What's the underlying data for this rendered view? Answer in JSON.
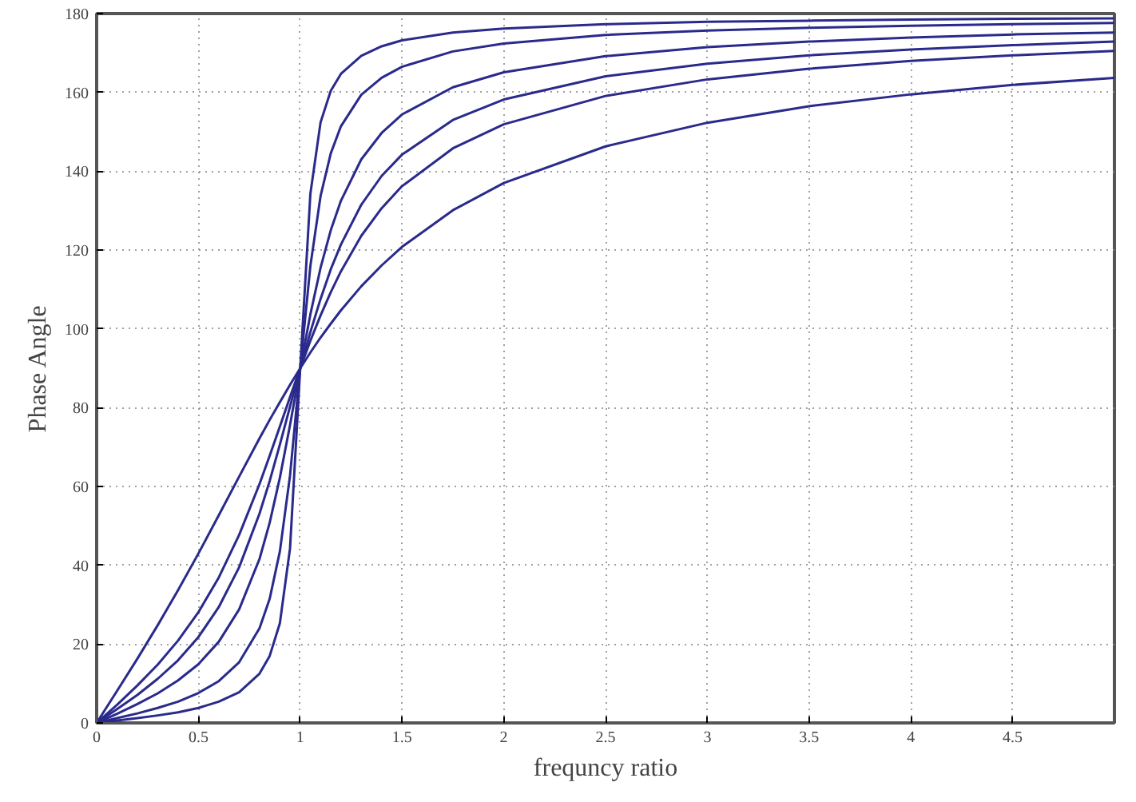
{
  "chart_data": {
    "type": "line",
    "xlabel": "frequncy ratio",
    "ylabel": "Phase Angle",
    "x": [
      0,
      0.1,
      0.2,
      0.3,
      0.4,
      0.5,
      0.6,
      0.7,
      0.8,
      0.85,
      0.9,
      0.95,
      1,
      1.05,
      1.1,
      1.15,
      1.2,
      1.3,
      1.4,
      1.5,
      1.75,
      2,
      2.5,
      3,
      3.5,
      4,
      4.5,
      5
    ],
    "series": [
      {
        "color": "#2a2a8c",
        "values": [
          0,
          8.1,
          16.3,
          24.8,
          33.7,
          43.0,
          52.7,
          62.5,
          72.2,
          76.9,
          81.4,
          85.8,
          90,
          94.0,
          97.8,
          101.3,
          104.7,
          110.8,
          116.1,
          120.8,
          130.1,
          137.0,
          146.3,
          152.3,
          156.5,
          159.5,
          161.9,
          163.7
        ]
      },
      {
        "color": "#2a2a8c",
        "values": [
          0,
          4.6,
          9.5,
          14.8,
          20.9,
          28.1,
          36.9,
          47.7,
          60.6,
          67.8,
          75.2,
          82.7,
          90,
          97.0,
          103.4,
          109.3,
          114.6,
          123.6,
          130.6,
          136.2,
          145.8,
          151.9,
          159.1,
          163.3,
          166.0,
          168.0,
          169.4,
          170.5
        ]
      },
      {
        "color": "#2a2a8c",
        "values": [
          0,
          3.5,
          7.1,
          11.2,
          15.9,
          21.8,
          29.4,
          39.5,
          53.1,
          61.4,
          70.6,
          80.3,
          90,
          99.2,
          107.6,
          115.1,
          121.4,
          131.5,
          138.8,
          144.2,
          153.0,
          158.2,
          164.1,
          167.3,
          169.4,
          170.9,
          172.0,
          172.9
        ]
      },
      {
        "color": "#2a2a8c",
        "values": [
          0,
          2.3,
          4.8,
          7.5,
          10.8,
          14.9,
          20.6,
          28.8,
          41.6,
          50.8,
          62.2,
          75.6,
          90,
          103.7,
          115.5,
          125.0,
          132.5,
          143.0,
          149.7,
          154.4,
          161.3,
          165.1,
          169.2,
          171.5,
          172.9,
          173.9,
          174.7,
          175.2
        ]
      },
      {
        "color": "#2a2a8c",
        "values": [
          0,
          1.2,
          2.4,
          3.8,
          5.4,
          7.6,
          10.6,
          15.4,
          24.0,
          31.5,
          43.5,
          62.8,
          90,
          116.0,
          133.7,
          144.5,
          151.4,
          159.4,
          163.7,
          166.5,
          170.4,
          172.4,
          174.6,
          175.7,
          176.4,
          176.9,
          177.3,
          177.6
        ]
      },
      {
        "color": "#2a2a8c",
        "values": [
          0,
          0.6,
          1.2,
          1.9,
          2.7,
          3.8,
          5.4,
          7.8,
          12.5,
          17.0,
          25.3,
          44.3,
          90,
          134.3,
          152.4,
          160.4,
          164.7,
          169.3,
          171.7,
          173.2,
          175.2,
          176.2,
          177.3,
          177.9,
          178.2,
          178.5,
          178.7,
          178.8
        ]
      }
    ],
    "xlim": [
      0,
      5
    ],
    "ylim": [
      0,
      180
    ],
    "xticks": [
      0,
      0.5,
      1,
      1.5,
      2,
      2.5,
      3,
      3.5,
      4,
      4.5
    ],
    "yticks": [
      0,
      20,
      40,
      60,
      80,
      100,
      120,
      140,
      160,
      180
    ],
    "grid": true,
    "marker": "none",
    "line_style": "solid"
  }
}
